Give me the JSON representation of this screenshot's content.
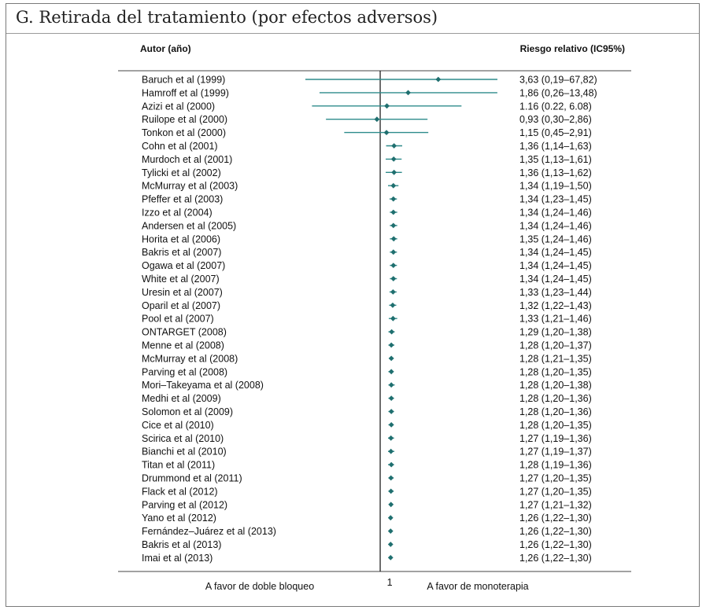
{
  "title": "G. Retirada del tratamiento (por efectos adversos)",
  "colors": {
    "ci": "#2e8b8b",
    "point": "#1f6f6f",
    "text": "#111111"
  },
  "chart_data": {
    "type": "forest",
    "title": "G. Retirada del tratamiento (por efectos adversos)",
    "column_headers": {
      "study": "Autor (año)",
      "estimate": "Riesgo relativo (IC95%)"
    },
    "x_scale": "log",
    "reference_value": 1,
    "reference_label": "1",
    "x_range": [
      0.19,
      13.5
    ],
    "left_direction_label": "A favor de doble bloqueo",
    "right_direction_label": "A favor de monoterapia",
    "grid": false,
    "studies": [
      {
        "name": "Baruch et al (1999)",
        "rr": 3.63,
        "lo": 0.19,
        "hi": 67.82,
        "label": "3,63 (0,19–67,82)"
      },
      {
        "name": "Hamroff et al (1999)",
        "rr": 1.86,
        "lo": 0.26,
        "hi": 13.48,
        "label": "1,86 (0,26–13,48)"
      },
      {
        "name": "Azizi et al (2000)",
        "rr": 1.16,
        "lo": 0.22,
        "hi": 6.08,
        "label": "1.16 (0.22, 6.08)"
      },
      {
        "name": "Ruilope et al (2000)",
        "rr": 0.93,
        "lo": 0.3,
        "hi": 2.86,
        "label": "0,93 (0,30–2,86)"
      },
      {
        "name": "Tonkon et al (2000)",
        "rr": 1.15,
        "lo": 0.45,
        "hi": 2.91,
        "label": "1,15 (0,45–2,91)"
      },
      {
        "name": "Cohn et al (2001)",
        "rr": 1.36,
        "lo": 1.14,
        "hi": 1.63,
        "label": "1,36 (1,14–1,63)"
      },
      {
        "name": "Murdoch et al (2001)",
        "rr": 1.35,
        "lo": 1.13,
        "hi": 1.61,
        "label": "1,35 (1,13–1,61)"
      },
      {
        "name": "Tylicki et al (2002)",
        "rr": 1.36,
        "lo": 1.13,
        "hi": 1.62,
        "label": "1,36 (1,13–1,62)"
      },
      {
        "name": "McMurray et al (2003)",
        "rr": 1.34,
        "lo": 1.19,
        "hi": 1.5,
        "label": "1,34 (1,19–1,50)"
      },
      {
        "name": "Pfeffer et al (2003)",
        "rr": 1.34,
        "lo": 1.23,
        "hi": 1.45,
        "label": "1,34 (1,23–1,45)"
      },
      {
        "name": "Izzo et al (2004)",
        "rr": 1.34,
        "lo": 1.24,
        "hi": 1.46,
        "label": "1,34 (1,24–1,46)"
      },
      {
        "name": "Andersen et al (2005)",
        "rr": 1.34,
        "lo": 1.24,
        "hi": 1.46,
        "label": "1,34 (1,24–1,46)"
      },
      {
        "name": "Horita et al (2006)",
        "rr": 1.35,
        "lo": 1.24,
        "hi": 1.46,
        "label": "1,35 (1,24–1,46)"
      },
      {
        "name": "Bakris et al (2007)",
        "rr": 1.34,
        "lo": 1.24,
        "hi": 1.45,
        "label": "1,34 (1,24–1,45)"
      },
      {
        "name": "Ogawa et al (2007)",
        "rr": 1.34,
        "lo": 1.24,
        "hi": 1.45,
        "label": "1,34 (1,24–1,45)"
      },
      {
        "name": "White et al (2007)",
        "rr": 1.34,
        "lo": 1.24,
        "hi": 1.45,
        "label": "1,34 (1,24–1,45)"
      },
      {
        "name": "Uresin et al (2007)",
        "rr": 1.33,
        "lo": 1.23,
        "hi": 1.44,
        "label": "1,33 (1,23–1,44)"
      },
      {
        "name": "Oparil et al (2007)",
        "rr": 1.32,
        "lo": 1.22,
        "hi": 1.43,
        "label": "1,32 (1,22–1,43)"
      },
      {
        "name": "Pool et al (2007)",
        "rr": 1.33,
        "lo": 1.21,
        "hi": 1.46,
        "label": "1,33 (1,21–1,46)"
      },
      {
        "name": "ONTARGET (2008)",
        "rr": 1.29,
        "lo": 1.2,
        "hi": 1.38,
        "label": "1,29 (1,20–1,38)"
      },
      {
        "name": "Menne et al (2008)",
        "rr": 1.28,
        "lo": 1.2,
        "hi": 1.37,
        "label": "1,28 (1,20–1,37)"
      },
      {
        "name": "McMurray et al (2008)",
        "rr": 1.28,
        "lo": 1.21,
        "hi": 1.35,
        "label": "1,28 (1,21–1,35)"
      },
      {
        "name": "Parving et al (2008)",
        "rr": 1.28,
        "lo": 1.2,
        "hi": 1.35,
        "label": "1,28 (1,20–1,35)"
      },
      {
        "name": "Mori–Takeyama et al (2008)",
        "rr": 1.28,
        "lo": 1.2,
        "hi": 1.38,
        "label": "1,28 (1,20–1,38)"
      },
      {
        "name": "Medhi et al (2009)",
        "rr": 1.28,
        "lo": 1.2,
        "hi": 1.36,
        "label": "1,28 (1,20–1,36)"
      },
      {
        "name": "Solomon et al (2009)",
        "rr": 1.28,
        "lo": 1.2,
        "hi": 1.36,
        "label": "1,28 (1,20–1,36)"
      },
      {
        "name": "Cice et al (2010)",
        "rr": 1.28,
        "lo": 1.2,
        "hi": 1.35,
        "label": "1,28 (1,20–1,35)"
      },
      {
        "name": "Scirica et al (2010)",
        "rr": 1.27,
        "lo": 1.19,
        "hi": 1.36,
        "label": "1,27 (1,19–1,36)"
      },
      {
        "name": "Bianchi et al (2010)",
        "rr": 1.27,
        "lo": 1.19,
        "hi": 1.37,
        "label": "1,27 (1,19–1,37)"
      },
      {
        "name": "Titan et al (2011)",
        "rr": 1.28,
        "lo": 1.19,
        "hi": 1.36,
        "label": "1,28 (1,19–1,36)"
      },
      {
        "name": "Drummond et al (2011)",
        "rr": 1.27,
        "lo": 1.2,
        "hi": 1.35,
        "label": "1,27 (1,20–1,35)"
      },
      {
        "name": "Flack et al (2012)",
        "rr": 1.27,
        "lo": 1.2,
        "hi": 1.35,
        "label": "1,27 (1,20–1,35)"
      },
      {
        "name": "Parving et al (2012)",
        "rr": 1.27,
        "lo": 1.21,
        "hi": 1.32,
        "label": "1,27 (1,21–1,32)"
      },
      {
        "name": "Yano et al (2012)",
        "rr": 1.26,
        "lo": 1.22,
        "hi": 1.3,
        "label": "1,26 (1,22–1,30)"
      },
      {
        "name": "Fernández–Juárez et al (2013)",
        "rr": 1.26,
        "lo": 1.22,
        "hi": 1.3,
        "label": "1,26 (1,22–1,30)"
      },
      {
        "name": "Bakris et al (2013)",
        "rr": 1.26,
        "lo": 1.22,
        "hi": 1.3,
        "label": "1,26 (1,22–1,30)"
      },
      {
        "name": "Imai et al (2013)",
        "rr": 1.26,
        "lo": 1.22,
        "hi": 1.3,
        "label": "1,26 (1,22–1,30)"
      }
    ]
  }
}
